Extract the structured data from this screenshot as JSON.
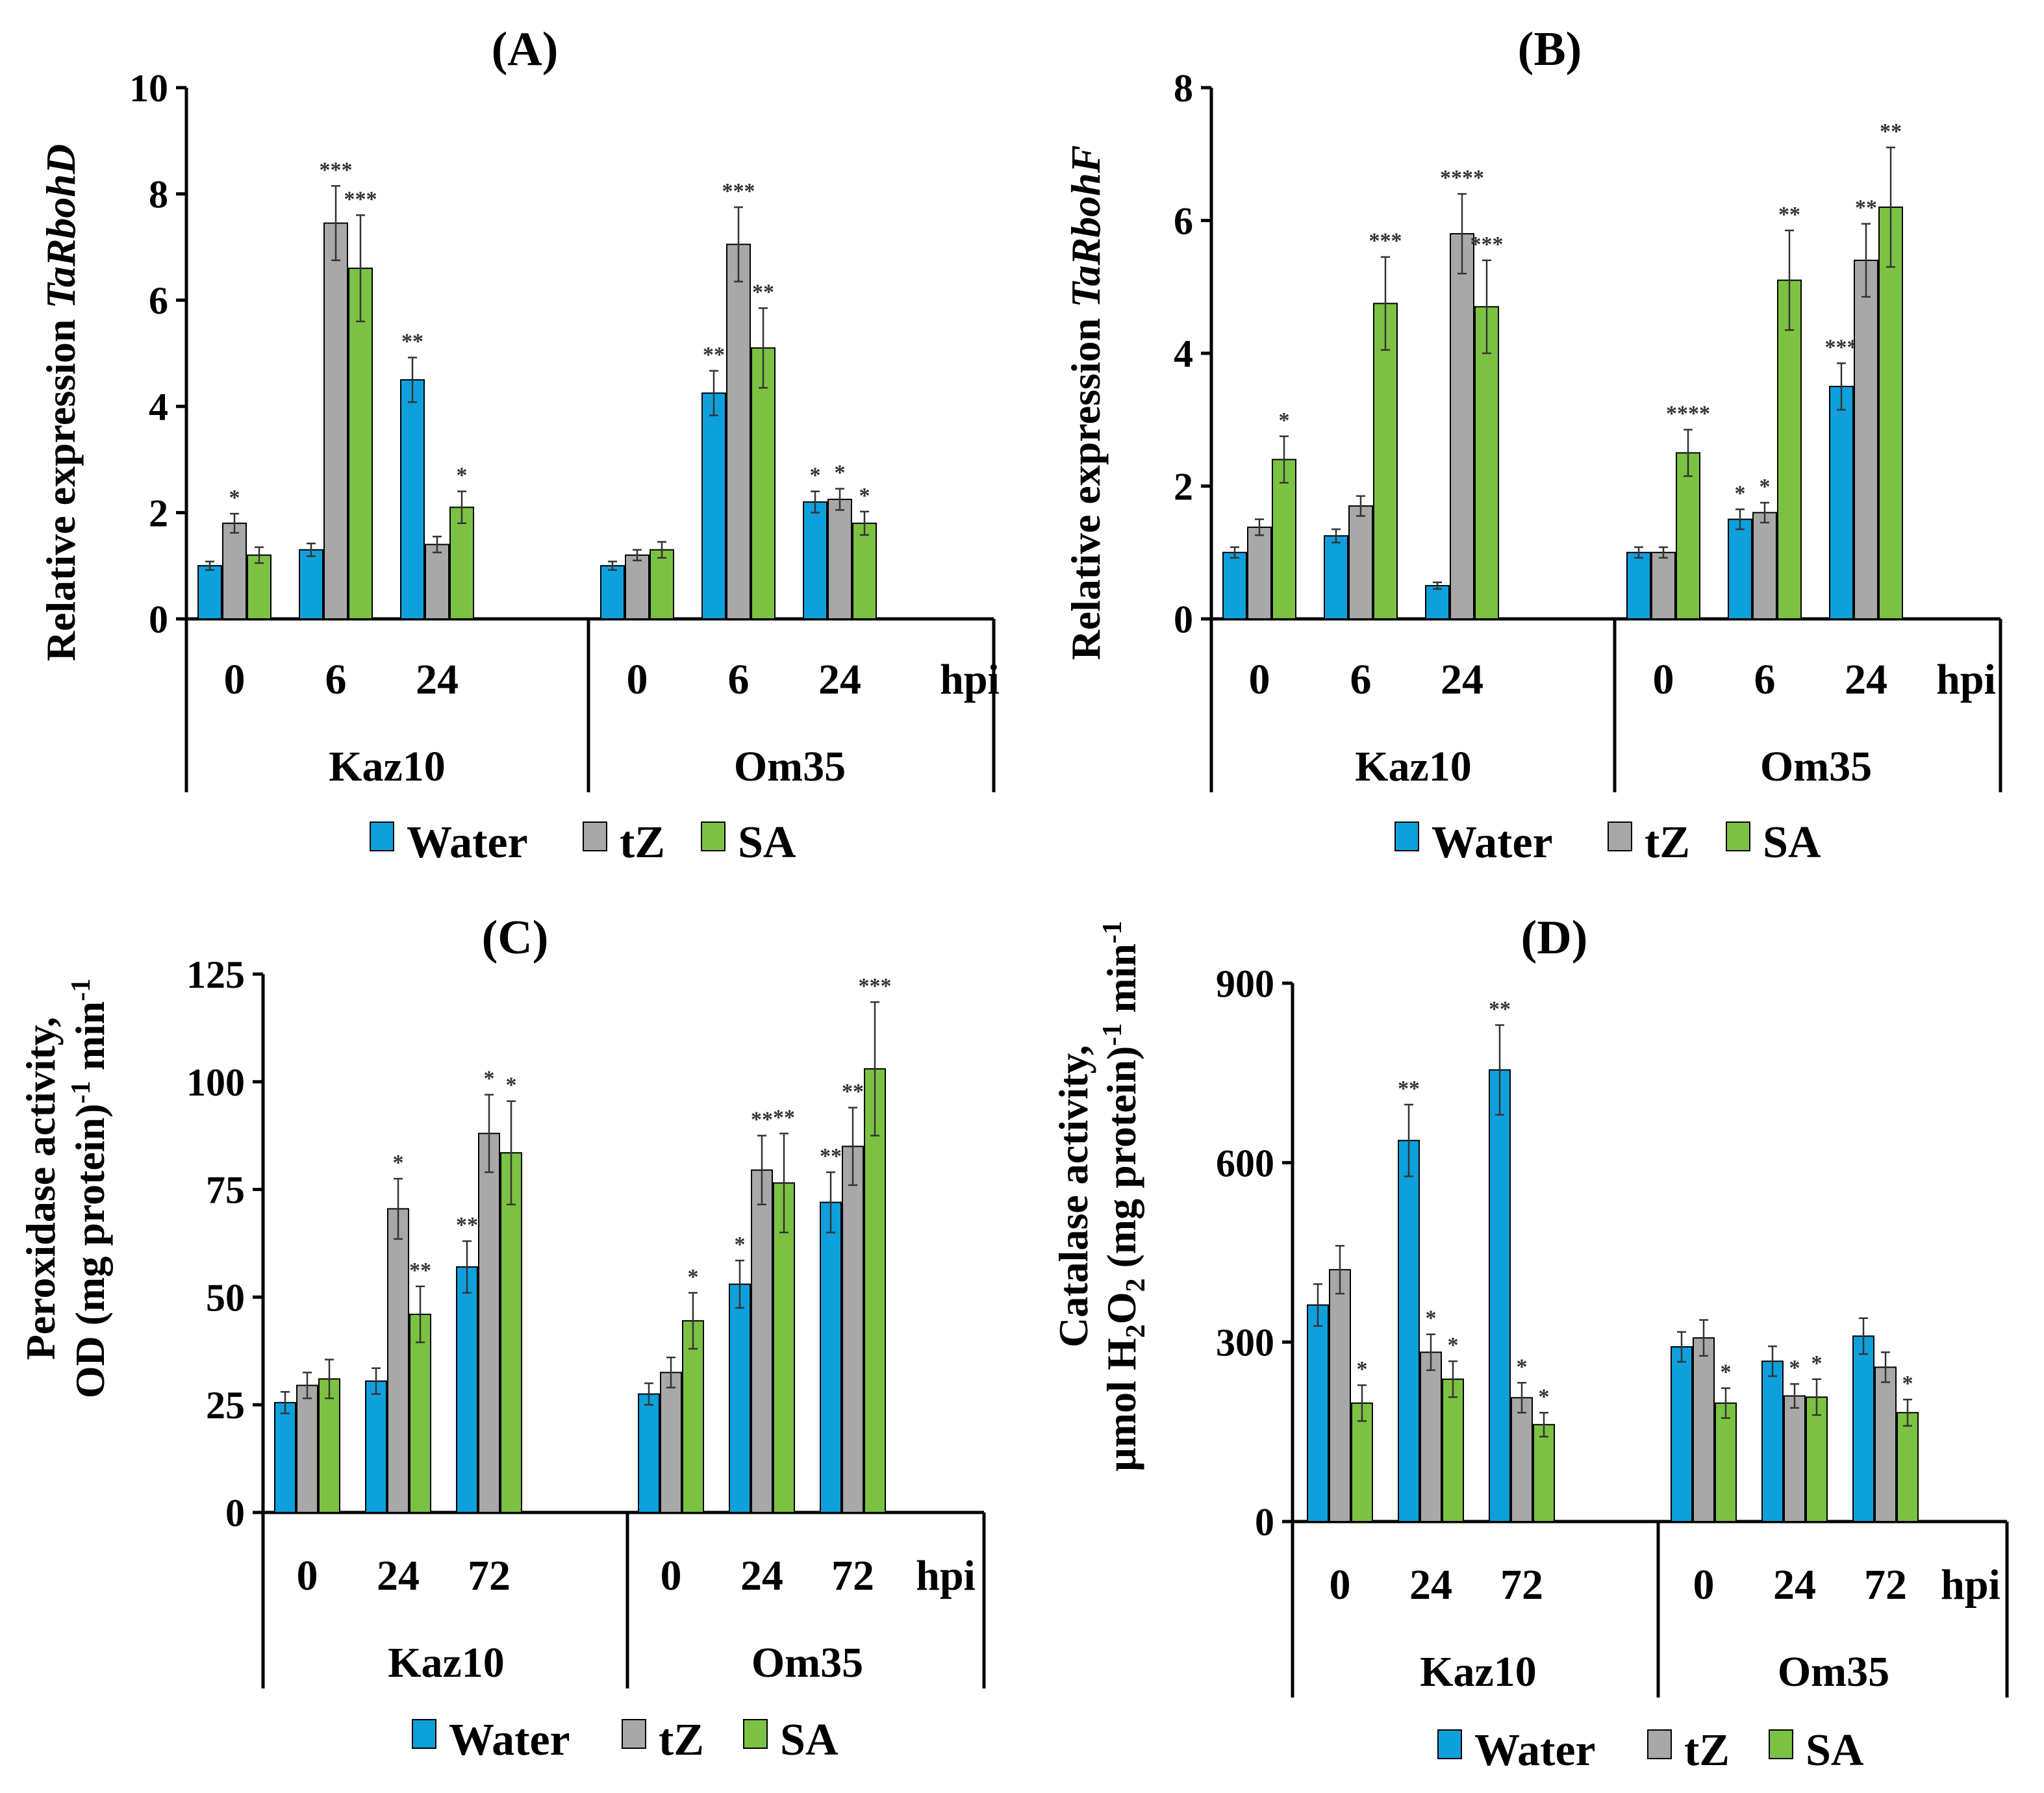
{
  "colors": {
    "Water": "#0ea0dc",
    "tZ": "#a8a8a8",
    "SA": "#7cc242",
    "axis": "#000000",
    "errorbar": "#333333"
  },
  "chart_data": [
    {
      "type": "bar",
      "panel": "A",
      "title": "(A)",
      "ylabel_prefix": "Relative expression ",
      "ylabel_gene": "TaRbohD",
      "ylabel_line2": "",
      "ylim": [
        0,
        10
      ],
      "yticks": [
        0,
        2,
        4,
        6,
        8,
        10
      ],
      "hpi_label": "hpi",
      "groups": [
        {
          "name": "Kaz10",
          "categories": [
            "0",
            "6",
            "24"
          ]
        },
        {
          "name": "Om35",
          "categories": [
            "0",
            "6",
            "24"
          ]
        }
      ],
      "series": [
        {
          "name": "Water",
          "values": [
            1.0,
            1.3,
            4.5,
            1.0,
            4.25,
            2.2
          ],
          "errors": [
            0.08,
            0.12,
            0.42,
            0.08,
            0.42,
            0.2
          ],
          "sig": [
            "",
            "",
            "**",
            "",
            "**",
            "*"
          ]
        },
        {
          "name": "tZ",
          "values": [
            1.8,
            7.45,
            1.4,
            1.2,
            7.05,
            2.25
          ],
          "errors": [
            0.18,
            0.7,
            0.15,
            0.1,
            0.7,
            0.2
          ],
          "sig": [
            "*",
            "***",
            "",
            "",
            "***",
            "*"
          ]
        },
        {
          "name": "SA",
          "values": [
            1.2,
            6.6,
            2.1,
            1.3,
            5.1,
            1.8
          ],
          "errors": [
            0.15,
            1.0,
            0.3,
            0.15,
            0.75,
            0.22
          ],
          "sig": [
            "",
            "***",
            "*",
            "",
            "**",
            "*"
          ]
        }
      ]
    },
    {
      "type": "bar",
      "panel": "B",
      "title": "(B)",
      "ylabel_prefix": "Relative expression ",
      "ylabel_gene": "TaRbohF",
      "ylabel_line2": "",
      "ylim": [
        0,
        8
      ],
      "yticks": [
        0,
        2,
        4,
        6,
        8
      ],
      "hpi_label": "hpi",
      "groups": [
        {
          "name": "Kaz10",
          "categories": [
            "0",
            "6",
            "24"
          ]
        },
        {
          "name": "Om35",
          "categories": [
            "0",
            "6",
            "24"
          ]
        }
      ],
      "series": [
        {
          "name": "Water",
          "values": [
            1.0,
            1.25,
            0.5,
            1.0,
            1.5,
            3.5
          ],
          "errors": [
            0.08,
            0.1,
            0.05,
            0.08,
            0.15,
            0.35
          ],
          "sig": [
            "",
            "",
            "",
            "",
            "*",
            "***"
          ]
        },
        {
          "name": "tZ",
          "values": [
            1.38,
            1.7,
            5.8,
            1.0,
            1.6,
            5.4
          ],
          "errors": [
            0.12,
            0.15,
            0.6,
            0.08,
            0.15,
            0.55
          ],
          "sig": [
            "",
            "",
            "****",
            "",
            "*",
            "**"
          ]
        },
        {
          "name": "SA",
          "values": [
            2.4,
            4.75,
            4.7,
            2.5,
            5.1,
            6.2
          ],
          "errors": [
            0.35,
            0.7,
            0.7,
            0.35,
            0.75,
            0.9
          ],
          "sig": [
            "*",
            "***",
            "***",
            "****",
            "**",
            "**"
          ]
        }
      ]
    },
    {
      "type": "bar",
      "panel": "C",
      "title": "(C)",
      "ylabel_prefix": "Peroxidase activity,",
      "ylabel_gene": "",
      "ylabel_line2": "OD (mg protein)",
      "ylabel_line2_sup1": "-1",
      "ylabel_line2_mid": " min",
      "ylabel_line2_sup2": "-1",
      "ylim": [
        0,
        125
      ],
      "yticks": [
        0,
        25,
        50,
        75,
        100,
        125
      ],
      "hpi_label": "hpi",
      "groups": [
        {
          "name": "Kaz10",
          "categories": [
            "0",
            "24",
            "72"
          ]
        },
        {
          "name": "Om35",
          "categories": [
            "0",
            "24",
            "72"
          ]
        }
      ],
      "series": [
        {
          "name": "Water",
          "values": [
            25.5,
            30.5,
            57,
            27.5,
            53,
            72
          ],
          "errors": [
            2.5,
            3,
            6,
            2.5,
            5.5,
            7
          ],
          "sig": [
            "",
            "",
            "**",
            "",
            "*",
            "**"
          ]
        },
        {
          "name": "tZ",
          "values": [
            29.5,
            70.5,
            88,
            32.5,
            79.5,
            85
          ],
          "errors": [
            3,
            7,
            9,
            3.5,
            8,
            9
          ],
          "sig": [
            "",
            "*",
            "*",
            "",
            "**",
            "**"
          ]
        },
        {
          "name": "SA",
          "values": [
            31,
            46,
            83.5,
            44.5,
            76.5,
            103
          ],
          "errors": [
            4.5,
            6.5,
            12,
            6.5,
            11.5,
            15.5
          ],
          "sig": [
            "",
            "**",
            "*",
            "*",
            "**",
            "***"
          ]
        }
      ]
    },
    {
      "type": "bar",
      "panel": "D",
      "title": "(D)",
      "ylabel_prefix": "Catalase activity,",
      "ylabel_gene": "",
      "ylabel_line2": "µmol H",
      "ylabel_line2_sub1": "2",
      "ylabel_line2_o": "O",
      "ylabel_line2_sub2": "2",
      "ylabel_line2_rest": " (mg protein)",
      "ylabel_line2_sup1": "-1",
      "ylabel_line2_mid": " min",
      "ylabel_line2_sup2": "-1",
      "ylim": [
        0,
        900
      ],
      "yticks": [
        0,
        300,
        600,
        900
      ],
      "hpi_label": "hpi",
      "groups": [
        {
          "name": "Kaz10",
          "categories": [
            "0",
            "24",
            "72"
          ]
        },
        {
          "name": "Om35",
          "categories": [
            "0",
            "24",
            "72"
          ]
        }
      ],
      "series": [
        {
          "name": "Water",
          "values": [
            362,
            637,
            755,
            292,
            268,
            310
          ],
          "errors": [
            35,
            60,
            75,
            25,
            25,
            30
          ],
          "sig": [
            "",
            "**",
            "**",
            "",
            "",
            ""
          ]
        },
        {
          "name": "tZ",
          "values": [
            421,
            283,
            207,
            307,
            210,
            258
          ],
          "errors": [
            40,
            30,
            25,
            30,
            20,
            25
          ],
          "sig": [
            "",
            "*",
            "*",
            "",
            "*",
            ""
          ]
        },
        {
          "name": "SA",
          "values": [
            198,
            238,
            162,
            198,
            208,
            182
          ],
          "errors": [
            30,
            30,
            20,
            25,
            30,
            22
          ],
          "sig": [
            "*",
            "*",
            "*",
            "*",
            "*",
            "*"
          ]
        }
      ]
    }
  ]
}
